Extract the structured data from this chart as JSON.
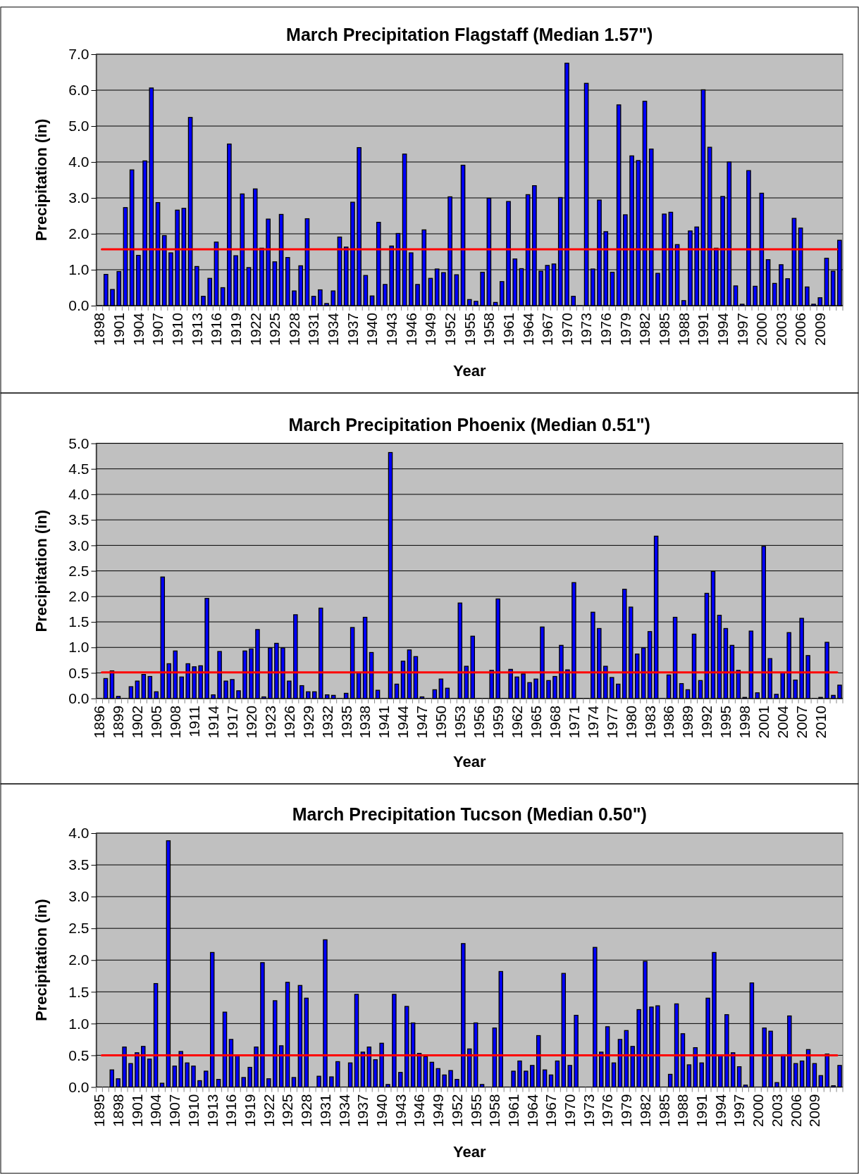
{
  "chart_data": [
    {
      "type": "bar",
      "title": "March Precipitation Flagstaff (Median 1.57\")",
      "xlabel": "Year",
      "ylabel": "Precipitation (in)",
      "color": "#0000ff",
      "grid": "y",
      "ylim": [
        0,
        7
      ],
      "yticks": [
        {
          "value": 0,
          "label": "0.0"
        },
        {
          "value": 1,
          "label": "1.0"
        },
        {
          "value": 2,
          "label": "2.0"
        },
        {
          "value": 3,
          "label": "3.0"
        },
        {
          "value": 4,
          "label": "4.0"
        },
        {
          "value": 5,
          "label": "5.0"
        },
        {
          "value": 6,
          "label": "6.0"
        },
        {
          "value": 7,
          "label": "7.0"
        }
      ],
      "ref_lines": [
        {
          "axis": "y",
          "value": 1.57,
          "color": "#ff0000"
        }
      ],
      "categories": [
        "1898",
        null,
        null,
        "1901",
        null,
        null,
        "1904",
        null,
        null,
        "1907",
        null,
        null,
        "1910",
        null,
        null,
        "1913",
        null,
        null,
        "1916",
        null,
        null,
        "1919",
        null,
        null,
        "1922",
        null,
        null,
        "1925",
        null,
        null,
        "1928",
        null,
        null,
        "1931",
        null,
        null,
        "1934",
        null,
        null,
        "1937",
        null,
        null,
        "1940",
        null,
        null,
        "1943",
        null,
        null,
        "1946",
        null,
        null,
        "1949",
        null,
        null,
        "1952",
        null,
        null,
        "1955",
        null,
        null,
        "1958",
        null,
        null,
        "1961",
        null,
        null,
        "1964",
        null,
        null,
        "1967",
        null,
        null,
        "1970",
        null,
        null,
        "1973",
        null,
        null,
        "1976",
        null,
        null,
        "1979",
        null,
        null,
        "1982",
        null,
        null,
        "1985",
        null,
        null,
        "1988",
        null,
        null,
        "1991",
        null,
        null,
        "1994",
        null,
        null,
        "1997",
        null,
        null,
        "2000",
        null,
        null,
        "2003",
        null,
        null,
        "2006",
        null,
        null,
        "2009",
        null,
        null,
        null
      ],
      "values": [
        null,
        0.87,
        0.45,
        0.95,
        2.73,
        3.78,
        1.4,
        4.03,
        6.06,
        2.87,
        1.95,
        1.47,
        2.66,
        2.71,
        5.24,
        1.09,
        0.26,
        0.76,
        1.77,
        0.5,
        4.5,
        1.39,
        3.11,
        1.06,
        3.25,
        1.6,
        2.41,
        1.22,
        2.54,
        1.34,
        0.41,
        1.11,
        2.42,
        0.26,
        0.44,
        0.06,
        0.41,
        1.91,
        1.63,
        2.88,
        4.4,
        0.84,
        0.27,
        2.32,
        0.59,
        1.66,
        2.01,
        4.22,
        1.47,
        0.59,
        2.11,
        0.76,
        1.02,
        0.92,
        3.03,
        0.86,
        3.91,
        0.17,
        0.12,
        0.93,
        2.99,
        0.09,
        0.67,
        2.9,
        1.3,
        1.03,
        3.09,
        3.34,
        0.96,
        1.12,
        1.16,
        3.01,
        6.75,
        0.26,
        null,
        6.19,
        1.02,
        2.94,
        2.06,
        0.93,
        5.59,
        2.53,
        4.17,
        4.04,
        5.69,
        4.36,
        0.9,
        2.55,
        2.6,
        1.7,
        0.14,
        2.08,
        2.19,
        6.01,
        4.41,
        1.6,
        3.04,
        4.0,
        0.55,
        0.04,
        3.76,
        0.54,
        3.13,
        1.28,
        0.62,
        1.14,
        0.75,
        2.43,
        2.16,
        0.52,
        0.04,
        0.22,
        1.32,
        0.96,
        1.82
      ]
    },
    {
      "type": "bar",
      "title": "March Precipitation Phoenix (Median 0.51\")",
      "xlabel": "Year",
      "ylabel": "Precipitation (in)",
      "color": "#0000ff",
      "grid": "y",
      "ylim": [
        0,
        5
      ],
      "yticks": [
        {
          "value": 0,
          "label": "0.0"
        },
        {
          "value": 0.5,
          "label": "0.5"
        },
        {
          "value": 1,
          "label": "1.0"
        },
        {
          "value": 1.5,
          "label": "1.5"
        },
        {
          "value": 2,
          "label": "2.0"
        },
        {
          "value": 2.5,
          "label": "2.5"
        },
        {
          "value": 3,
          "label": "3.0"
        },
        {
          "value": 3.5,
          "label": "3.5"
        },
        {
          "value": 4,
          "label": "4.0"
        },
        {
          "value": 4.5,
          "label": "4.5"
        },
        {
          "value": 5,
          "label": "5.0"
        }
      ],
      "ref_lines": [
        {
          "axis": "y",
          "value": 0.51,
          "color": "#ff0000"
        }
      ],
      "categories": [
        "1896",
        null,
        null,
        "1899",
        null,
        null,
        "1902",
        null,
        null,
        "1905",
        null,
        null,
        "1908",
        null,
        null,
        "1911",
        null,
        null,
        "1914",
        null,
        null,
        "1917",
        null,
        null,
        "1920",
        null,
        null,
        "1923",
        null,
        null,
        "1926",
        null,
        null,
        "1929",
        null,
        null,
        "1932",
        null,
        null,
        "1935",
        null,
        null,
        "1938",
        null,
        null,
        "1941",
        null,
        null,
        "1944",
        null,
        null,
        "1947",
        null,
        null,
        "1950",
        null,
        null,
        "1953",
        null,
        null,
        "1956",
        null,
        null,
        "1959",
        null,
        null,
        "1962",
        null,
        null,
        "1965",
        null,
        null,
        "1968",
        null,
        null,
        "1971",
        null,
        null,
        "1974",
        null,
        null,
        "1977",
        null,
        null,
        "1980",
        null,
        null,
        "1983",
        null,
        null,
        "1986",
        null,
        null,
        "1989",
        null,
        null,
        "1992",
        null,
        null,
        "1995",
        null,
        null,
        "1998",
        null,
        null,
        "2001",
        null,
        null,
        "2004",
        null,
        null,
        "2007",
        null,
        null,
        "2010",
        null,
        null,
        null
      ],
      "values": [
        null,
        0.39,
        0.54,
        0.04,
        null,
        0.23,
        0.34,
        0.47,
        0.43,
        0.13,
        2.38,
        0.68,
        0.93,
        0.42,
        0.68,
        0.62,
        0.64,
        1.96,
        0.07,
        0.92,
        0.34,
        0.37,
        0.15,
        0.93,
        0.97,
        1.35,
        0.03,
        0.99,
        1.08,
        0.99,
        0.34,
        1.64,
        0.25,
        0.13,
        0.13,
        1.77,
        0.07,
        0.06,
        null,
        0.1,
        1.39,
        0.5,
        1.59,
        0.9,
        0.16,
        null,
        4.82,
        0.28,
        0.73,
        0.95,
        0.82,
        0.03,
        null,
        0.17,
        0.38,
        0.2,
        null,
        1.87,
        0.63,
        1.22,
        null,
        null,
        0.55,
        1.95,
        null,
        0.57,
        0.42,
        0.48,
        0.31,
        0.38,
        1.4,
        0.35,
        0.43,
        1.04,
        0.56,
        2.27,
        null,
        null,
        1.69,
        1.37,
        0.63,
        0.41,
        0.28,
        2.14,
        1.79,
        0.87,
        0.99,
        1.31,
        3.18,
        null,
        0.46,
        1.59,
        0.29,
        0.17,
        1.26,
        0.35,
        2.06,
        2.49,
        1.63,
        1.37,
        1.04,
        0.55,
        0.02,
        1.32,
        0.11,
        2.98,
        0.78,
        0.08,
        0.51,
        1.29,
        0.36,
        1.57,
        0.84,
        null,
        0.02,
        1.1,
        0.06,
        0.26
      ]
    },
    {
      "type": "bar",
      "title": "March Precipitation Tucson (Median 0.50\")",
      "xlabel": "Year",
      "ylabel": "Precipitation (in)",
      "color": "#0000ff",
      "grid": "y",
      "ylim": [
        0,
        4
      ],
      "yticks": [
        {
          "value": 0,
          "label": "0.0"
        },
        {
          "value": 0.5,
          "label": "0.5"
        },
        {
          "value": 1,
          "label": "1.0"
        },
        {
          "value": 1.5,
          "label": "1.5"
        },
        {
          "value": 2,
          "label": "2.0"
        },
        {
          "value": 2.5,
          "label": "2.5"
        },
        {
          "value": 3,
          "label": "3.0"
        },
        {
          "value": 3.5,
          "label": "3.5"
        },
        {
          "value": 4,
          "label": "4.0"
        }
      ],
      "ref_lines": [
        {
          "axis": "y",
          "value": 0.5,
          "color": "#ff0000"
        }
      ],
      "categories": [
        "1895",
        null,
        null,
        "1898",
        null,
        null,
        "1901",
        null,
        null,
        "1904",
        null,
        null,
        "1907",
        null,
        null,
        "1910",
        null,
        null,
        "1913",
        null,
        null,
        "1916",
        null,
        null,
        "1919",
        null,
        null,
        "1922",
        null,
        null,
        "1925",
        null,
        null,
        "1928",
        null,
        null,
        "1931",
        null,
        null,
        "1934",
        null,
        null,
        "1937",
        null,
        null,
        "1940",
        null,
        null,
        "1943",
        null,
        null,
        "1946",
        null,
        null,
        "1949",
        null,
        null,
        "1952",
        null,
        null,
        "1955",
        null,
        null,
        "1958",
        null,
        null,
        "1961",
        null,
        null,
        "1964",
        null,
        null,
        "1967",
        null,
        null,
        "1970",
        null,
        null,
        "1973",
        null,
        null,
        "1976",
        null,
        null,
        "1979",
        null,
        null,
        "1982",
        null,
        null,
        "1985",
        null,
        null,
        "1988",
        null,
        null,
        "1991",
        null,
        null,
        "1994",
        null,
        null,
        "1997",
        null,
        null,
        "2000",
        null,
        null,
        "2003",
        null,
        null,
        "2006",
        null,
        null,
        "2009",
        null,
        null,
        null,
        null
      ],
      "values": [
        null,
        null,
        0.27,
        0.13,
        0.63,
        0.37,
        0.54,
        0.64,
        0.44,
        1.63,
        0.06,
        3.88,
        0.33,
        0.56,
        0.38,
        0.33,
        0.1,
        0.25,
        2.12,
        0.12,
        1.18,
        0.75,
        0.5,
        0.15,
        0.31,
        0.63,
        1.96,
        0.13,
        1.36,
        0.65,
        1.65,
        0.15,
        1.6,
        1.4,
        null,
        0.17,
        2.32,
        0.16,
        0.4,
        null,
        0.38,
        1.46,
        0.55,
        0.63,
        0.43,
        0.69,
        0.04,
        1.46,
        0.23,
        1.27,
        1.01,
        0.53,
        0.48,
        0.39,
        0.29,
        0.19,
        0.26,
        0.12,
        2.26,
        0.6,
        1.01,
        0.04,
        null,
        0.93,
        1.82,
        null,
        0.25,
        0.41,
        0.25,
        0.34,
        0.81,
        0.27,
        0.19,
        0.41,
        1.79,
        0.34,
        1.13,
        null,
        null,
        2.2,
        0.55,
        0.95,
        0.38,
        0.75,
        0.89,
        0.64,
        1.22,
        1.98,
        1.26,
        1.28,
        null,
        0.2,
        1.31,
        0.84,
        0.35,
        0.62,
        0.38,
        1.4,
        2.12,
        0.5,
        1.14,
        0.54,
        0.32,
        0.03,
        1.64,
        null,
        0.93,
        0.88,
        0.07,
        0.51,
        1.12,
        0.37,
        0.41,
        0.59,
        0.37,
        0.18,
        0.52,
        0.02,
        0.34
      ]
    }
  ]
}
